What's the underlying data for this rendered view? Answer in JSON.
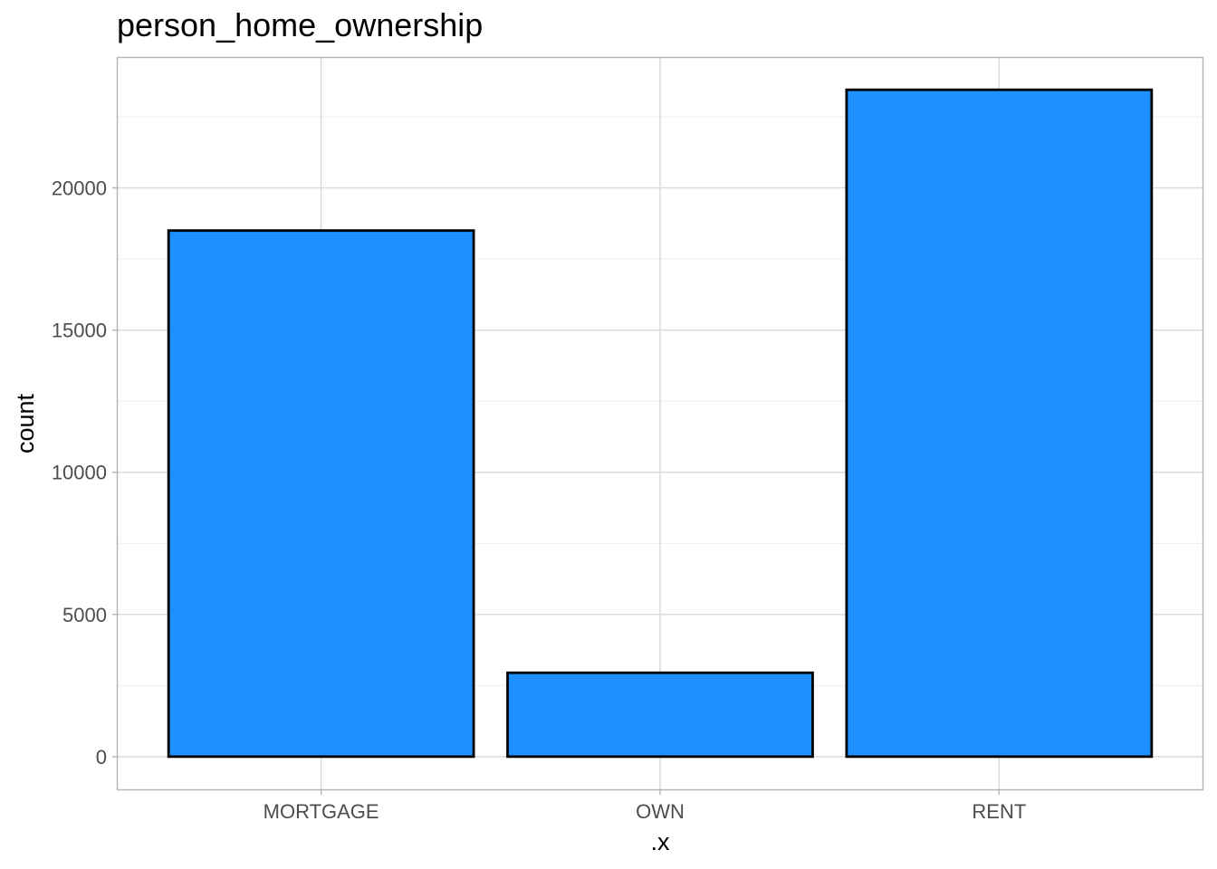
{
  "chart_data": {
    "type": "bar",
    "title": "person_home_ownership",
    "xlabel": ".x",
    "ylabel": "count",
    "categories": [
      "MORTGAGE",
      "OWN",
      "RENT"
    ],
    "values": [
      18500,
      2950,
      23450
    ],
    "ylim": [
      -1150,
      24570
    ],
    "yticks": [
      0,
      5000,
      10000,
      15000,
      20000
    ],
    "ytick_labels": [
      "0",
      "5000",
      "10000",
      "15000",
      "20000"
    ],
    "grid": true,
    "bar_color": "#1E90FF",
    "bar_outline": "#000000",
    "legend": "none"
  }
}
